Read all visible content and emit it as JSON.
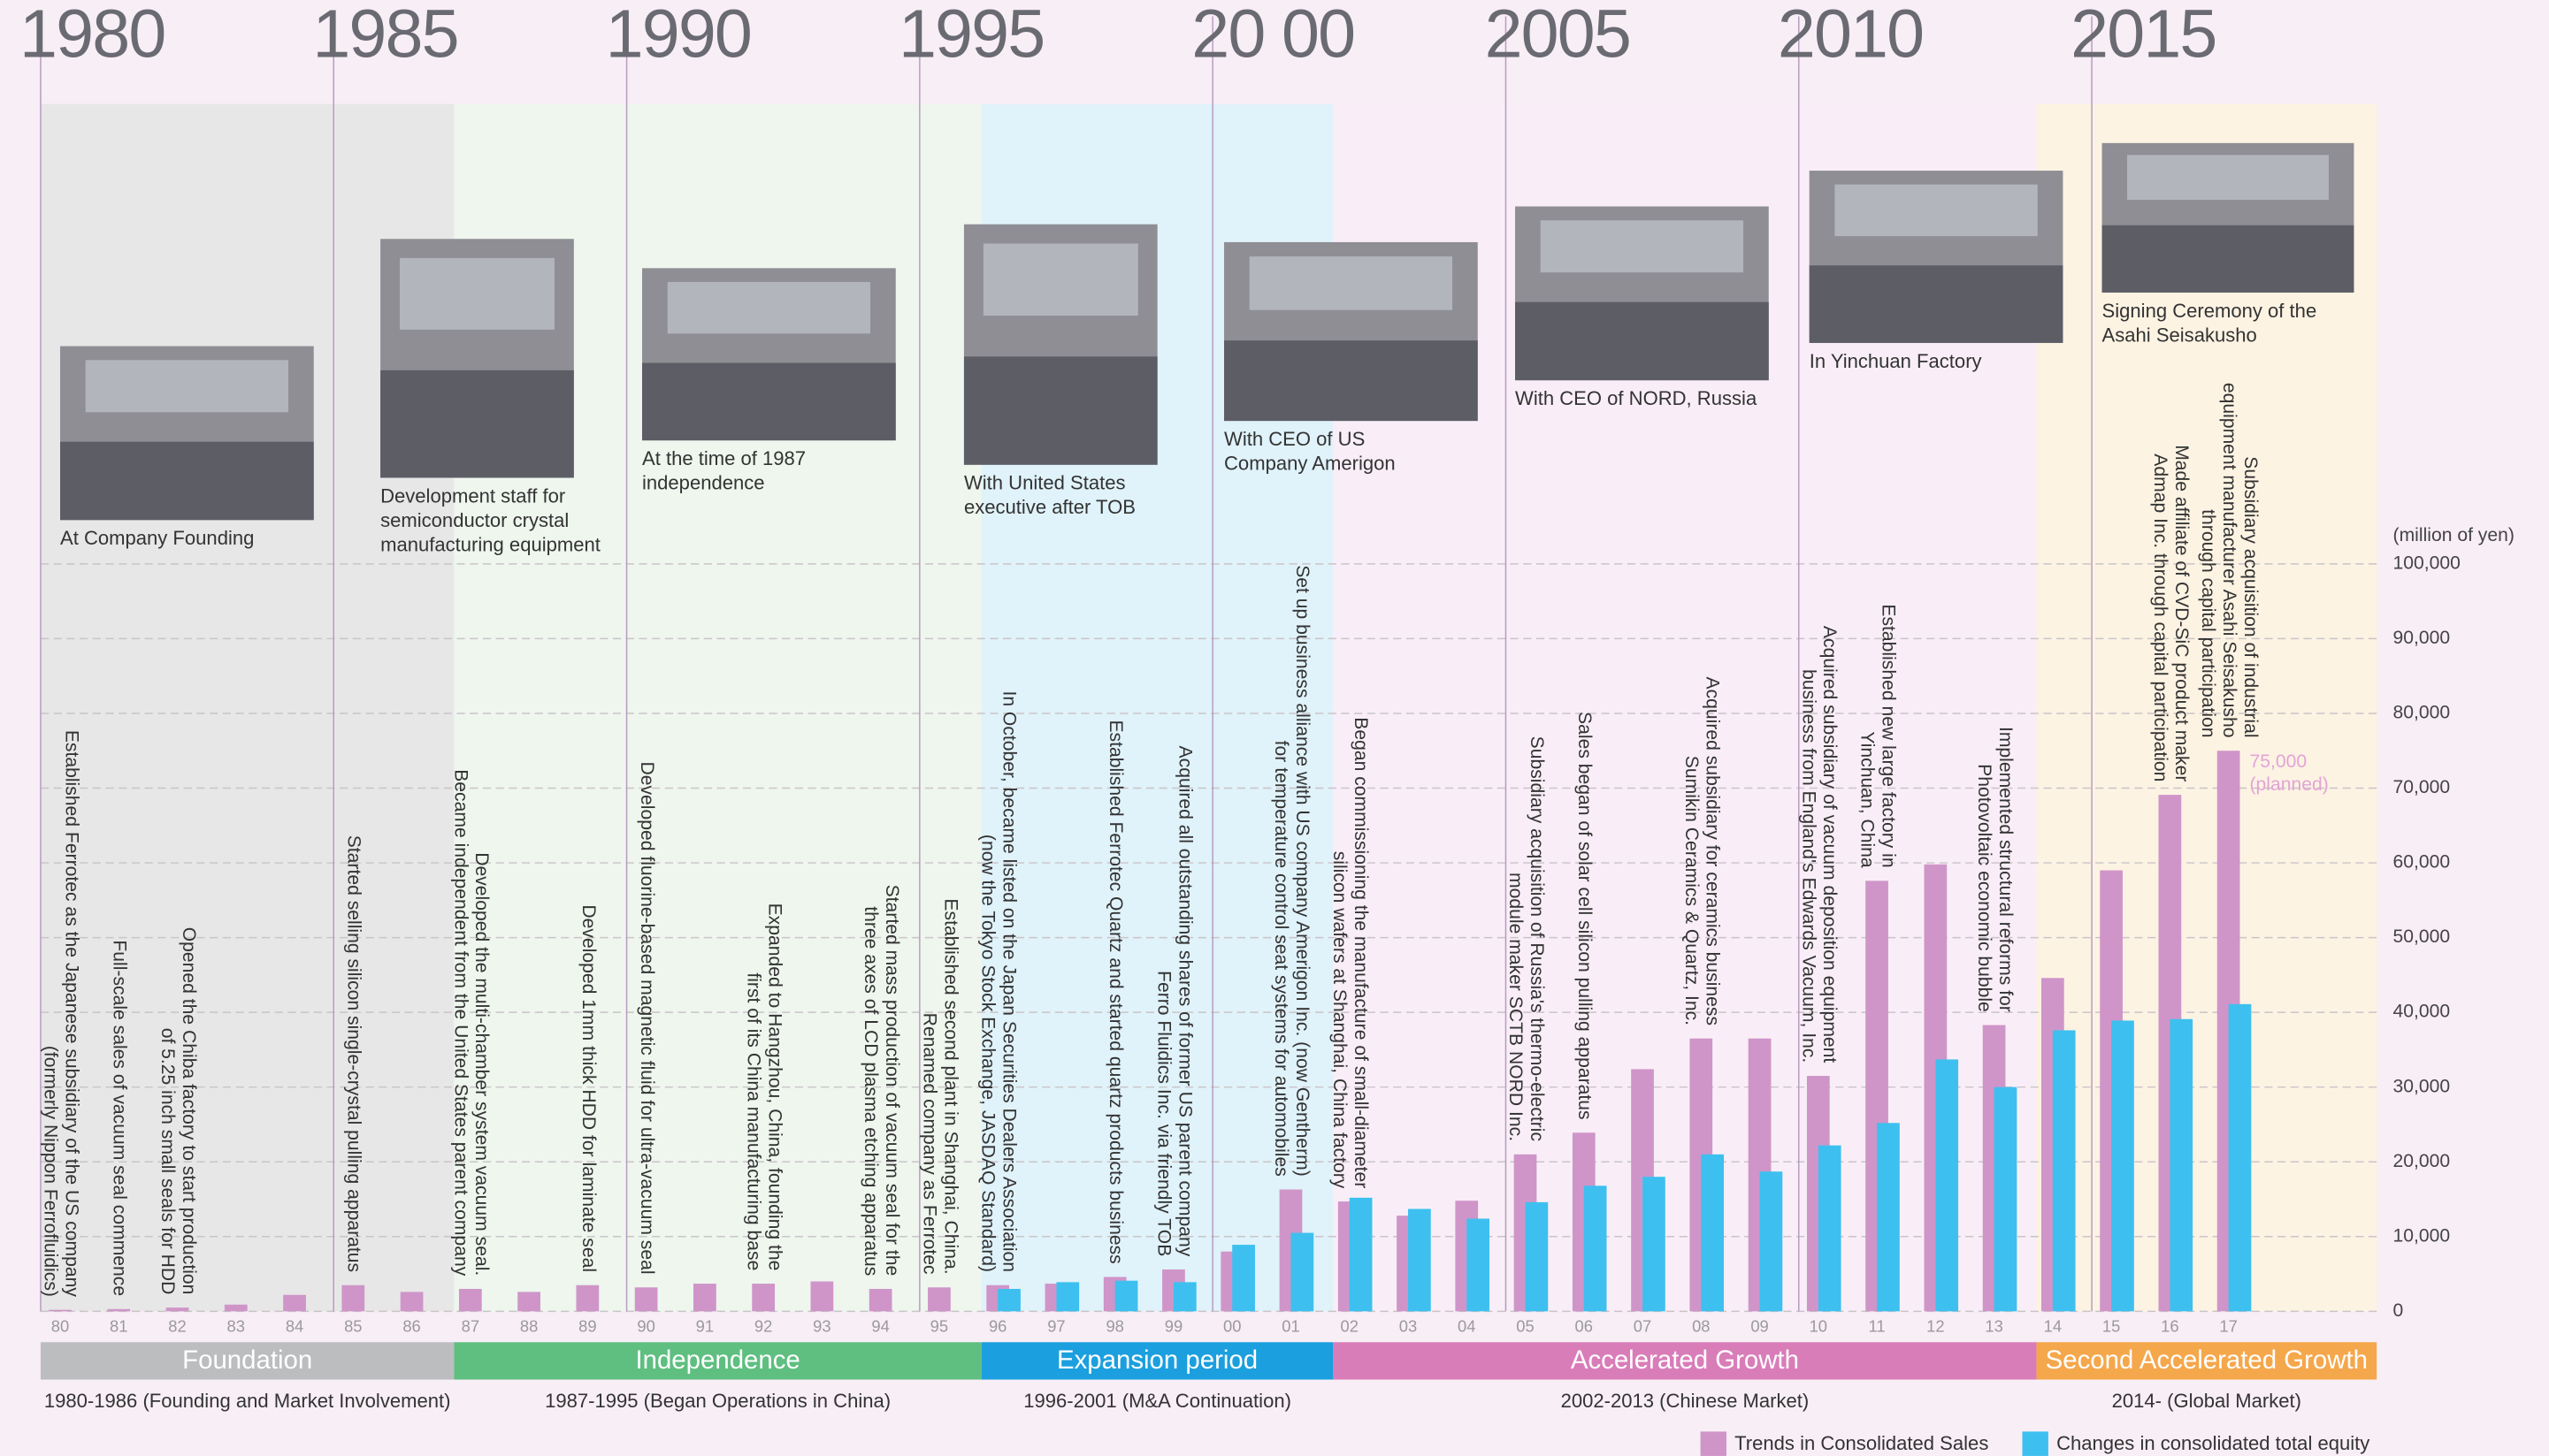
{
  "chart_data": {
    "type": "bar",
    "y_axis_label": "(million of yen)",
    "categories": [
      "80",
      "81",
      "82",
      "83",
      "84",
      "85",
      "86",
      "87",
      "88",
      "89",
      "90",
      "91",
      "92",
      "93",
      "94",
      "95",
      "96",
      "97",
      "98",
      "99",
      "00",
      "01",
      "02",
      "03",
      "04",
      "05",
      "06",
      "07",
      "08",
      "09",
      "10",
      "11",
      "12",
      "13",
      "14",
      "15",
      "16",
      "17"
    ],
    "series": [
      {
        "name": "Trends in Consolidated Sales",
        "color": "#cf95c9",
        "values": [
          200,
          300,
          500,
          900,
          2200,
          3500,
          2600,
          3000,
          2600,
          3500,
          3200,
          3700,
          3700,
          4000,
          3000,
          3200,
          3500,
          3700,
          4600,
          5600,
          8000,
          16300,
          14700,
          12800,
          14800,
          21000,
          23900,
          32400,
          36500,
          36500,
          31500,
          57600,
          59800,
          38300,
          44600,
          59000,
          69100,
          75000
        ],
        "value_labels": [
          null,
          null,
          null,
          null,
          null,
          null,
          null,
          null,
          null,
          null,
          null,
          null,
          null,
          null,
          null,
          null,
          null,
          null,
          null,
          null,
          null,
          null,
          null,
          null,
          null,
          null,
          null,
          null,
          null,
          null,
          null,
          null,
          null,
          null,
          null,
          null,
          null,
          "75,000 (planned)"
        ]
      },
      {
        "name": "Changes in consolidated total equity",
        "color": "#3dc0ef",
        "values": [
          null,
          null,
          null,
          null,
          null,
          null,
          null,
          null,
          null,
          null,
          null,
          null,
          null,
          null,
          null,
          null,
          3000,
          3900,
          4100,
          3900,
          8900,
          10500,
          15200,
          13700,
          12400,
          14600,
          16800,
          18000,
          21000,
          18700,
          22200,
          25200,
          33700,
          30000,
          37600,
          38900,
          39100,
          41100
        ]
      }
    ],
    "ylim": [
      0,
      100000
    ],
    "yticks": [
      0,
      {
        "value": 10000,
        "label": "10,000"
      },
      {
        "value": 20000,
        "label": "20,000"
      },
      {
        "value": 30000,
        "label": "30,000"
      },
      {
        "value": 40000,
        "label": "40,000"
      },
      {
        "value": 50000,
        "label": "50,000"
      },
      {
        "value": 60000,
        "label": "60,000"
      },
      {
        "value": 70000,
        "label": "70,000"
      },
      {
        "value": 80000,
        "label": "80,000"
      },
      {
        "value": 90000,
        "label": "90,000"
      },
      {
        "value": 100000,
        "label": "100,000"
      }
    ],
    "grid": true,
    "legend": "bottom-right"
  },
  "timeline": {
    "eras": [
      "1980",
      "1985",
      "1990",
      "1995",
      "20 00",
      "2005",
      "2010",
      "2015"
    ],
    "periods": [
      {
        "name": "Foundation",
        "subtitle": "1980-1986 (Founding and Market Involvement)",
        "color": "#bcbdbf",
        "band": "#e7e7e7"
      },
      {
        "name": "Independence",
        "subtitle": "1987-1995 (Began Operations in China)",
        "color": "#5ebf80",
        "band": "#eef6ee"
      },
      {
        "name": "Expansion period",
        "subtitle": "1996-2001 (M&A Continuation)",
        "color": "#1b9fde",
        "band": "#e0f2fa"
      },
      {
        "name": "Accelerated Growth",
        "subtitle": "2002-2013 (Chinese Market)",
        "color": "#d97db9",
        "band": "#f9eef7"
      },
      {
        "name": "Second Accelerated Growth",
        "subtitle": "2014- (Global Market)",
        "color": "#f5a74b",
        "band": "#fdf3e3"
      }
    ],
    "captions": [
      [
        "At Company Founding"
      ],
      [
        "Development staff for",
        "semiconductor crystal",
        "manufacturing equipment"
      ],
      [
        "At the time of 1987",
        "independence"
      ],
      [
        "With United States",
        "executive after TOB"
      ],
      [
        "With CEO of US",
        "Company Amerigon"
      ],
      [
        "With CEO of NORD, Russia"
      ],
      [
        "In Yinchuan Factory"
      ],
      [
        "Signing Ceremony of the",
        "Asahi Seisakusho"
      ]
    ],
    "events": [
      [
        "Established Ferrotec as the Japanese subsidiary of the US company",
        "(formerly Nippon Ferrofluidics)"
      ],
      [
        "Full-scale sales of vacuum seal commence"
      ],
      [
        "Opened the Chiba factory to start production",
        "of 5.25 inch small seals for HDD"
      ],
      [
        "Started selling silicon single-crystal pulling apparatus"
      ],
      [
        "Developed the multi-chamber system vacuum seal.",
        "Became independent from the United States parent company"
      ],
      [
        "Developed 1mm thick HDD for laminate seal"
      ],
      [
        "Developed fluorine-based magnetic fluid for ultra-vacuum seal"
      ],
      [
        "Expanded to Hangzhou, China, founding the",
        "first of its China manufacturing base"
      ],
      [
        "Started mass production of vacuum seal for the",
        "three axes of LCD plasma etching apparatus"
      ],
      [
        "Established second plant in Shanghai, China.",
        "Renamed company as Ferrotec"
      ],
      [
        "In October, became listed on the Japan Securities Dealers Association",
        "(now the Tokyo Stock Exchange, JASDAQ Standard)"
      ],
      [
        "Established Ferrotec Quartz and started quartz products business"
      ],
      [
        "Acquired all outstanding shares of former US parent company",
        "Ferro Fluidics Inc. via friendly TOB"
      ],
      [
        "Set up business alliance with US company Amerigon Inc. (now Gentherm)",
        "for temperature control seat systems for automobiles"
      ],
      [
        "Began commissioning the manufacture of small-diameter",
        "silicon wafers at Shanghai, China factory"
      ],
      [
        "Subsidiary acquisition of Russia's thermo-electric",
        "module maker SCTB NORD Inc."
      ],
      [
        "Sales began of solar cell silicon pulling apparatus"
      ],
      [
        "Acquired subsidiary for ceramics business",
        "Sumikin Ceramics & Quartz, Inc."
      ],
      [
        "Acquired subsidiary of vacuum deposition equipment",
        "business from England's Edwards Vacuum, Inc."
      ],
      [
        "Established new large factory in",
        "Yinchuan, China"
      ],
      [
        "Implemented structural reforms for",
        "Photovoltaic economic bubble"
      ],
      [
        "Made affiliate of CVD-SiC product maker",
        "Admap Inc. through capital participation"
      ],
      [
        "Subsidiary acquisition of industrial",
        "equipment manufacturer Asahi Seisakusho",
        "through capital participation"
      ]
    ]
  }
}
